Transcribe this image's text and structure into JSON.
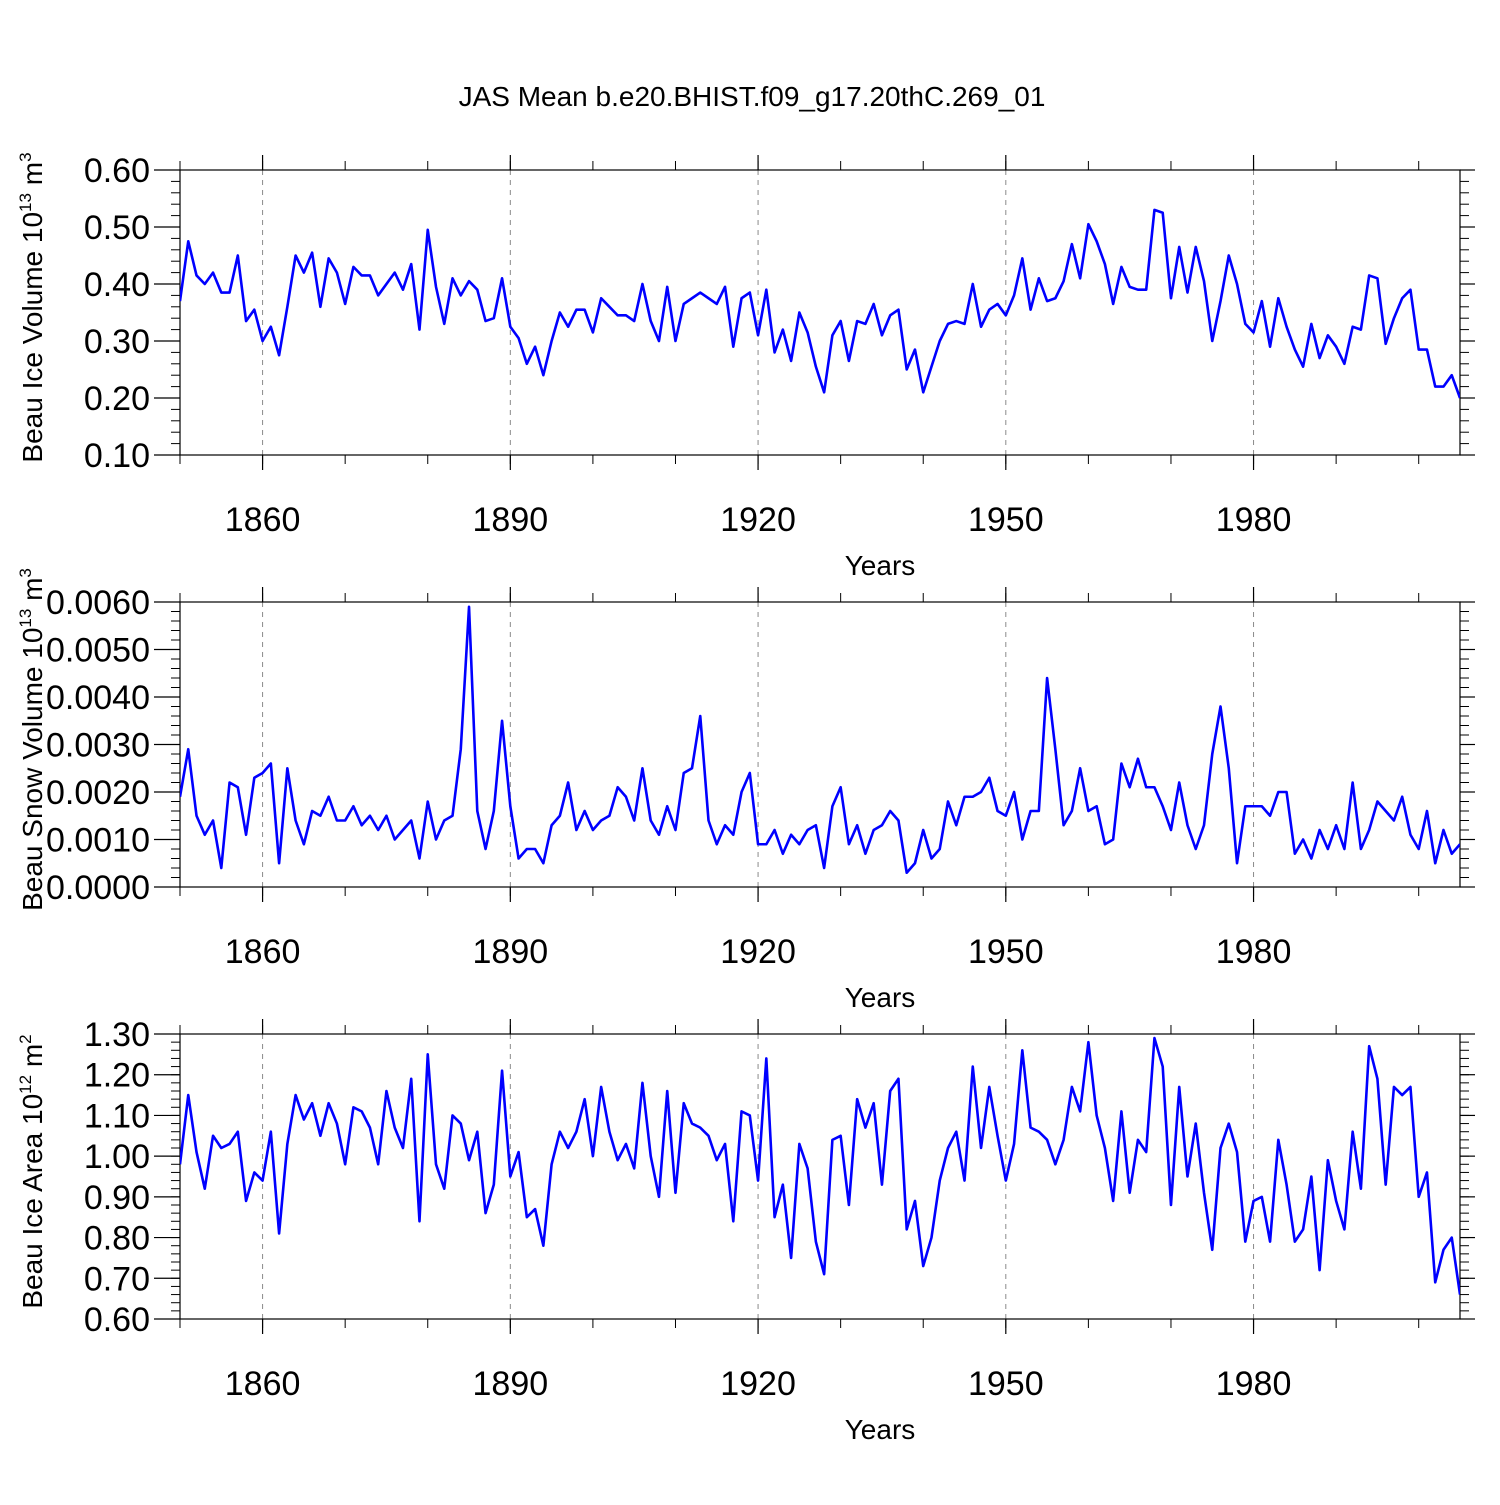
{
  "title": "JAS Mean b.e20.BHIST.f09_g17.20thC.269_01",
  "line_color": "#0000ff",
  "chart_data": [
    {
      "type": "line",
      "ylabel_prefix": "Beau Ice Volume 10",
      "ylabel_sup1": "13",
      "ylabel_mid": " m",
      "ylabel_sup2": "3",
      "xlabel": "Years",
      "ylim": [
        0.1,
        0.6
      ],
      "yticks": [
        0.1,
        0.2,
        0.3,
        0.4,
        0.5,
        0.6
      ],
      "ytick_labels": [
        "0.10",
        "0.20",
        "0.30",
        "0.40",
        "0.50",
        "0.60"
      ],
      "xlim": [
        1850,
        2005
      ],
      "xticks": [
        1860,
        1890,
        1920,
        1950,
        1980
      ],
      "xtick_labels": [
        "1860",
        "1890",
        "1920",
        "1950",
        "1980"
      ],
      "x_start": 1850,
      "values": [
        0.37,
        0.475,
        0.415,
        0.4,
        0.42,
        0.385,
        0.385,
        0.45,
        0.335,
        0.355,
        0.3,
        0.325,
        0.275,
        0.36,
        0.45,
        0.42,
        0.455,
        0.36,
        0.445,
        0.42,
        0.365,
        0.43,
        0.415,
        0.415,
        0.38,
        0.4,
        0.42,
        0.39,
        0.435,
        0.32,
        0.495,
        0.395,
        0.33,
        0.41,
        0.38,
        0.405,
        0.39,
        0.335,
        0.34,
        0.41,
        0.325,
        0.305,
        0.26,
        0.29,
        0.24,
        0.3,
        0.35,
        0.325,
        0.355,
        0.355,
        0.315,
        0.375,
        0.36,
        0.345,
        0.345,
        0.335,
        0.4,
        0.335,
        0.3,
        0.395,
        0.3,
        0.365,
        0.375,
        0.385,
        0.375,
        0.365,
        0.395,
        0.29,
        0.375,
        0.385,
        0.31,
        0.39,
        0.28,
        0.32,
        0.265,
        0.35,
        0.315,
        0.255,
        0.21,
        0.31,
        0.335,
        0.265,
        0.335,
        0.33,
        0.365,
        0.31,
        0.345,
        0.355,
        0.25,
        0.285,
        0.21,
        0.255,
        0.3,
        0.33,
        0.335,
        0.33,
        0.4,
        0.325,
        0.355,
        0.365,
        0.345,
        0.38,
        0.445,
        0.355,
        0.41,
        0.37,
        0.375,
        0.405,
        0.47,
        0.41,
        0.505,
        0.475,
        0.435,
        0.365,
        0.43,
        0.395,
        0.39,
        0.39,
        0.53,
        0.525,
        0.375,
        0.465,
        0.385,
        0.465,
        0.405,
        0.3,
        0.37,
        0.45,
        0.4,
        0.33,
        0.315,
        0.37,
        0.29,
        0.375,
        0.325,
        0.285,
        0.255,
        0.33,
        0.27,
        0.31,
        0.29,
        0.26,
        0.325,
        0.32,
        0.415,
        0.41,
        0.295,
        0.34,
        0.375,
        0.39,
        0.285,
        0.285,
        0.22,
        0.22,
        0.24,
        0.2
      ]
    },
    {
      "type": "line",
      "ylabel_prefix": "Beau Snow Volume 10",
      "ylabel_sup1": "13",
      "ylabel_mid": " m",
      "ylabel_sup2": "3",
      "xlabel": "Years",
      "ylim": [
        0.0,
        0.006
      ],
      "yticks": [
        0.0,
        0.001,
        0.002,
        0.003,
        0.004,
        0.005,
        0.006
      ],
      "ytick_labels": [
        "0.0000",
        "0.0010",
        "0.0020",
        "0.0030",
        "0.0040",
        "0.0050",
        "0.0060"
      ],
      "xlim": [
        1850,
        2005
      ],
      "xticks": [
        1860,
        1890,
        1920,
        1950,
        1980
      ],
      "xtick_labels": [
        "1860",
        "1890",
        "1920",
        "1950",
        "1980"
      ],
      "x_start": 1850,
      "values": [
        0.0019,
        0.0029,
        0.0015,
        0.0011,
        0.0014,
        0.0004,
        0.0022,
        0.0021,
        0.0011,
        0.0023,
        0.0024,
        0.0026,
        0.0005,
        0.0025,
        0.0014,
        0.0009,
        0.0016,
        0.0015,
        0.0019,
        0.0014,
        0.0014,
        0.0017,
        0.0013,
        0.0015,
        0.0012,
        0.0015,
        0.001,
        0.0012,
        0.0014,
        0.0006,
        0.0018,
        0.001,
        0.0014,
        0.0015,
        0.0029,
        0.0059,
        0.0016,
        0.0008,
        0.0016,
        0.0035,
        0.0017,
        0.0006,
        0.0008,
        0.0008,
        0.0005,
        0.0013,
        0.0015,
        0.0022,
        0.0012,
        0.0016,
        0.0012,
        0.0014,
        0.0015,
        0.0021,
        0.0019,
        0.0014,
        0.0025,
        0.0014,
        0.0011,
        0.0017,
        0.0012,
        0.0024,
        0.0025,
        0.0036,
        0.0014,
        0.0009,
        0.0013,
        0.0011,
        0.002,
        0.0024,
        0.0009,
        0.0009,
        0.0012,
        0.0007,
        0.0011,
        0.0009,
        0.0012,
        0.0013,
        0.0004,
        0.0017,
        0.0021,
        0.0009,
        0.0013,
        0.0007,
        0.0012,
        0.0013,
        0.0016,
        0.0014,
        0.0003,
        0.0005,
        0.0012,
        0.0006,
        0.0008,
        0.0018,
        0.0013,
        0.0019,
        0.0019,
        0.002,
        0.0023,
        0.0016,
        0.0015,
        0.002,
        0.001,
        0.0016,
        0.0016,
        0.0044,
        0.0029,
        0.0013,
        0.0016,
        0.0025,
        0.0016,
        0.0017,
        0.0009,
        0.001,
        0.0026,
        0.0021,
        0.0027,
        0.0021,
        0.0021,
        0.0017,
        0.0012,
        0.0022,
        0.0013,
        0.0008,
        0.0013,
        0.0028,
        0.0038,
        0.0025,
        0.0005,
        0.0017,
        0.0017,
        0.0017,
        0.0015,
        0.002,
        0.002,
        0.0007,
        0.001,
        0.0006,
        0.0012,
        0.0008,
        0.0013,
        0.0008,
        0.0022,
        0.0008,
        0.0012,
        0.0018,
        0.0016,
        0.0014,
        0.0019,
        0.0011,
        0.0008,
        0.0016,
        0.0005,
        0.0012,
        0.0007,
        0.0009
      ]
    },
    {
      "type": "line",
      "ylabel_prefix": "Beau Ice Area 10",
      "ylabel_sup1": "12",
      "ylabel_mid": " m",
      "ylabel_sup2": "2",
      "xlabel": "Years",
      "ylim": [
        0.6,
        1.3
      ],
      "yticks": [
        0.6,
        0.7,
        0.8,
        0.9,
        1.0,
        1.1,
        1.2,
        1.3
      ],
      "ytick_labels": [
        "0.60",
        "0.70",
        "0.80",
        "0.90",
        "1.00",
        "1.10",
        "1.20",
        "1.30"
      ],
      "xlim": [
        1850,
        2005
      ],
      "xticks": [
        1860,
        1890,
        1920,
        1950,
        1980
      ],
      "xtick_labels": [
        "1860",
        "1890",
        "1920",
        "1950",
        "1980"
      ],
      "x_start": 1850,
      "values": [
        0.98,
        1.15,
        1.01,
        0.92,
        1.05,
        1.02,
        1.03,
        1.06,
        0.89,
        0.96,
        0.94,
        1.06,
        0.81,
        1.03,
        1.15,
        1.09,
        1.13,
        1.05,
        1.13,
        1.08,
        0.98,
        1.12,
        1.11,
        1.07,
        0.98,
        1.16,
        1.07,
        1.02,
        1.19,
        0.84,
        1.25,
        0.98,
        0.92,
        1.1,
        1.08,
        0.99,
        1.06,
        0.86,
        0.93,
        1.21,
        0.95,
        1.01,
        0.85,
        0.87,
        0.78,
        0.98,
        1.06,
        1.02,
        1.06,
        1.14,
        1.0,
        1.17,
        1.06,
        0.99,
        1.03,
        0.97,
        1.18,
        1.0,
        0.9,
        1.16,
        0.91,
        1.13,
        1.08,
        1.07,
        1.05,
        0.99,
        1.03,
        0.84,
        1.11,
        1.1,
        0.94,
        1.24,
        0.85,
        0.93,
        0.75,
        1.03,
        0.97,
        0.79,
        0.71,
        1.04,
        1.05,
        0.88,
        1.14,
        1.07,
        1.13,
        0.93,
        1.16,
        1.19,
        0.82,
        0.89,
        0.73,
        0.8,
        0.94,
        1.02,
        1.06,
        0.94,
        1.22,
        1.02,
        1.17,
        1.05,
        0.94,
        1.03,
        1.26,
        1.07,
        1.06,
        1.04,
        0.98,
        1.04,
        1.17,
        1.11,
        1.28,
        1.1,
        1.02,
        0.89,
        1.11,
        0.91,
        1.04,
        1.01,
        1.29,
        1.22,
        0.88,
        1.17,
        0.95,
        1.08,
        0.91,
        0.77,
        1.02,
        1.08,
        1.01,
        0.79,
        0.89,
        0.9,
        0.79,
        1.04,
        0.93,
        0.79,
        0.82,
        0.95,
        0.72,
        0.99,
        0.89,
        0.82,
        1.06,
        0.92,
        1.27,
        1.19,
        0.93,
        1.17,
        1.15,
        1.17,
        0.9,
        0.96,
        0.69,
        0.77,
        0.8,
        0.66
      ]
    }
  ]
}
